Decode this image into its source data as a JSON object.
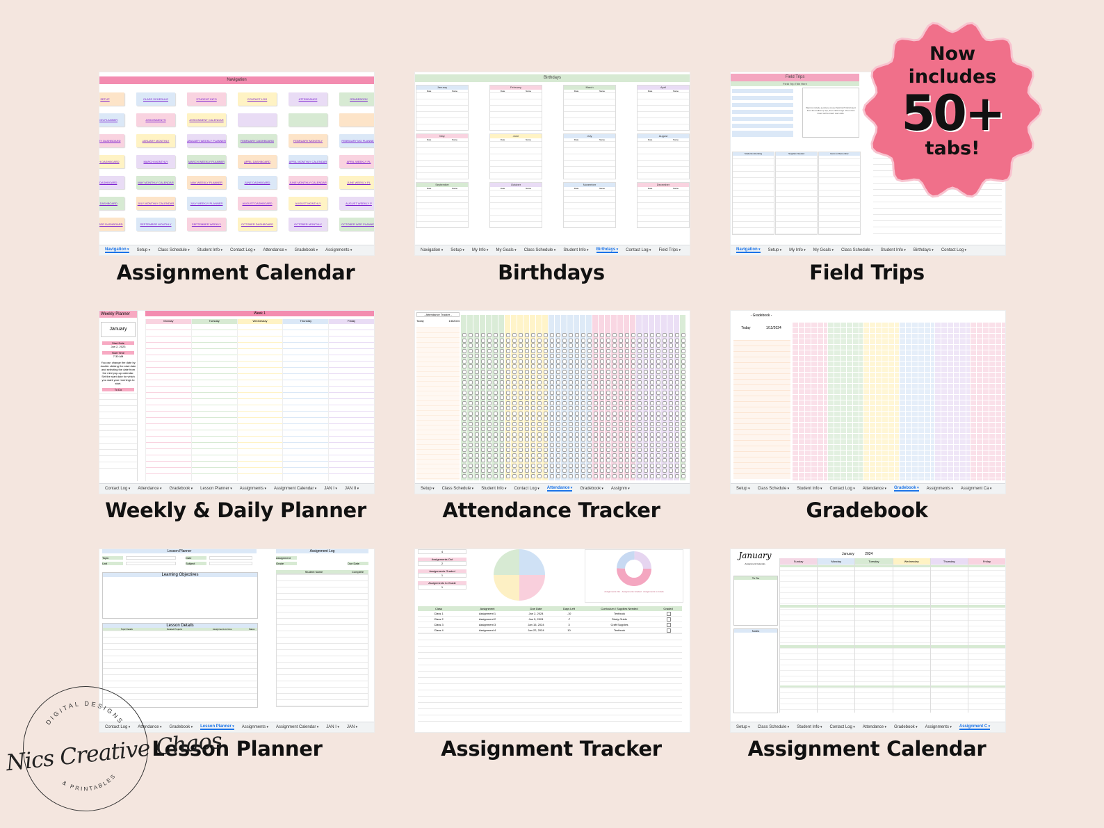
{
  "captions": {
    "assignment_calendar_top": "Assignment Calendar",
    "birthdays": "Birthdays",
    "field_trips": "Field Trips",
    "weekly_daily_planner": "Weekly & Daily Planner",
    "attendance_tracker": "Attendance Tracker",
    "gradebook": "Gradebook",
    "lesson_planner": "Lesson Planner",
    "assignment_tracker": "Assignment Tracker",
    "assignment_calendar_bottom": "Assignment Calendar"
  },
  "badge": {
    "line1": "Now",
    "line2": "includes",
    "line3": "50+",
    "line4": "tabs!",
    "color": "#f0708a"
  },
  "stamp": {
    "top_arc": "DIGITAL DESIGNS",
    "bottom_arc": "& PRINTABLES",
    "signature": "Nics Creative Chaos"
  },
  "navigation": {
    "title": "Navigation",
    "buttons": [
      [
        "SETUP",
        "CLASS SCHEDULE",
        "STUDENT INFO",
        "CONTACT LOG",
        "ATTENDANCE",
        "GRADEBOOK"
      ],
      [
        "LESSON PLANNER",
        "ASSIGNMENTS",
        "ASSIGNMENT CALENDAR",
        "",
        "",
        ""
      ],
      [
        "JANUARY DASHBOARD",
        "JANUARY MONTHLY CALENDAR",
        "JANUARY WEEKLY PLANNER",
        "FEBRUARY DASHBOARD",
        "FEBRUARY MONTHLY CALENDAR",
        "FEBRUARY MO PLANNER"
      ],
      [
        "MARCH DASHBOARD",
        "MARCH MONTHLY CALENDAR",
        "MARCH WEEKLY PLANNER",
        "APRIL DASHBOARD",
        "APRIL MONTHLY CALENDAR",
        "APRIL WEEKLY PL"
      ],
      [
        "MAY DASHBOARD",
        "MAY MONTHLY CALENDAR",
        "MAY WEEKLY PLANNER",
        "JUNE DASHBOARD",
        "JUNE MONTHLY CALENDAR",
        "JUNE WEEKLY PL"
      ],
      [
        "JULY DASHBOARD",
        "JULY MONTHLY CALENDAR",
        "JULY WEEKLY PLANNER",
        "AUGUST DASHBOARD",
        "AUGUST MONTHLY CALENDAR",
        "AUGUST WEEKLY P"
      ],
      [
        "SEPTEMBER DASHBOARD",
        "SEPTEMBER MONTHLY CALENDAR",
        "SEPTEMBER WEEKLY PLANNER",
        "OCTOBER DASHBOARD",
        "OCTOBER MONTHLY CALENDAR",
        "OCTOBER WEE PLANNER"
      ]
    ],
    "tabs": [
      "Navigation",
      "Setup",
      "Class Schedule",
      "Student Info",
      "Contact Log",
      "Attendance",
      "Gradebook",
      "Assignments"
    ]
  },
  "birthdays": {
    "title": "Birthdays",
    "months": [
      "January",
      "February",
      "March",
      "April",
      "May",
      "June",
      "July",
      "August",
      "September",
      "October",
      "November",
      "December"
    ],
    "col_date": "Date",
    "col_name": "Name",
    "tabs": [
      "Navigation",
      "Setup",
      "My Info",
      "My Goals",
      "Class Schedule",
      "Student Info",
      "Birthdays",
      "Contact Log",
      "Field Trips"
    ]
  },
  "field_trips": {
    "title": "Field Trips",
    "subtitle": "Field Trip Title Here",
    "note": "Want to include a picture of your field trip? Click Insert from the toolbar up top, then click image. Then click Insert cell to insert over cells.",
    "columns": [
      "Students Attending",
      "Supplies Needed",
      "Items to Remember"
    ],
    "tabs": [
      "Navigation",
      "Setup",
      "My Info",
      "My Goals",
      "Class Schedule",
      "Student Info",
      "Birthdays",
      "Contact Log"
    ]
  },
  "weekly": {
    "side_title": "Weekly Planner",
    "month": "January",
    "start_date_label": "Start Date",
    "start_date": "Jan 2, 2023",
    "start_time_label": "Start Time",
    "start_time": "7:30 AM",
    "note": "You can change the date by double clicking the start date and selecting the date from the mini pop-up calendar. Set the start date for which you want your mornings to start.",
    "todo": "To Do",
    "week": "Week 1",
    "days": [
      "Monday",
      "Tuesday",
      "Wednesday",
      "Thursday",
      "Friday"
    ],
    "tabs": [
      "Contact Log",
      "Attendance",
      "Gradebook",
      "Lesson Planner",
      "Assignments",
      "Assignment Calendar",
      "JAN I",
      "JAN II"
    ]
  },
  "attendance": {
    "title": "- Attendance Tracker -",
    "today_label": "Today",
    "today": "1/8/2024",
    "tabs": [
      "Setup",
      "Class Schedule",
      "Student Info",
      "Contact Log",
      "Attendance",
      "Gradebook",
      "Assignm"
    ]
  },
  "gradebook": {
    "title": "- Gradebook -",
    "today_label": "Today",
    "today": "1/11/2024",
    "tabs": [
      "Setup",
      "Class Schedule",
      "Student Info",
      "Contact Log",
      "Attendance",
      "Gradebook",
      "Assignments",
      "Assignment Ca"
    ]
  },
  "lesson": {
    "title": "Lesson Planner",
    "topic": "Topic",
    "date": "Date",
    "unit": "Unit",
    "subject": "Subject",
    "objectives": "Learning Objectives",
    "details": "Lesson Details",
    "details_cols": [
      "Topic Details",
      "Related Projects",
      "Assignments to Give",
      "Status"
    ],
    "log_title": "Assignment Log",
    "assignment": "Assignment",
    "grade": "Grade",
    "due_date": "Due Date",
    "student_name": "Student Name",
    "complete": "Complete",
    "tabs": [
      "Contact Log",
      "Attendance",
      "Gradebook",
      "Lesson Planner",
      "Assignments",
      "Assignment Calendar",
      "JAN I",
      "JAN"
    ]
  },
  "tracker": {
    "stats": [
      {
        "label": "",
        "value": "4"
      },
      {
        "label": "Assignments Out",
        "value": "2"
      },
      {
        "label": "Assignments Graded",
        "value": "1"
      },
      {
        "label": "Assignments to Grade",
        "value": "1"
      }
    ],
    "columns": [
      "Class",
      "Assignment",
      "Due Date",
      "Days Left",
      "Curriculum / Supplies Needed",
      "Graded"
    ],
    "rows": [
      [
        "Class 1",
        "Assignment 1",
        "Jan 2, 2024",
        "-10",
        "Textbook"
      ],
      [
        "Class 2",
        "Assignment 2",
        "Jan 5, 2024",
        "-7",
        "Study Guide"
      ],
      [
        "Class 3",
        "Assignment 3",
        "Jan 15, 2024",
        "3",
        "Craft Supplies"
      ],
      [
        "Class 4",
        "Assignment 4",
        "Jan 22, 2024",
        "10",
        "Textbook"
      ]
    ],
    "legend": [
      "Assignments Out",
      "Assignments Graded",
      "Assignments to Grade"
    ]
  },
  "calendar": {
    "month_script": "January",
    "subtitle": "- Assignment Calendar -",
    "month": "January",
    "year": "2024",
    "days": [
      "Sunday",
      "Monday",
      "Tuesday",
      "Wednesday",
      "Thursday",
      "Friday"
    ],
    "todo": "To Do",
    "notes": "Notes",
    "tabs": [
      "Setup",
      "Class Schedule",
      "Student Info",
      "Contact Log",
      "Attendance",
      "Gradebook",
      "Assignments",
      "Assignment C"
    ]
  }
}
